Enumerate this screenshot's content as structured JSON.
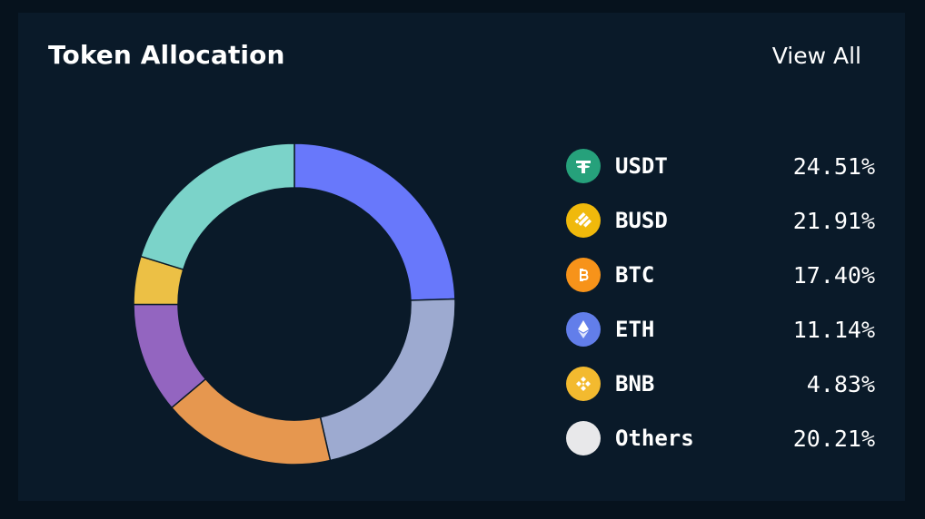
{
  "card": {
    "title": "Token Allocation",
    "view_all_label": "View All"
  },
  "chart_data": {
    "type": "pie",
    "subtype": "donut",
    "title": "",
    "categories": [
      "USDT",
      "BUSD",
      "BTC",
      "ETH",
      "BNB",
      "Others"
    ],
    "values": [
      24.51,
      21.91,
      17.4,
      11.14,
      4.83,
      20.21
    ],
    "value_labels": [
      "24.51%",
      "21.91%",
      "17.40%",
      "11.14%",
      "4.83%",
      "20.21%"
    ],
    "unit": "%",
    "colors": [
      "#6878fb",
      "#9daad0",
      "#e6974f",
      "#9365c0",
      "#ecc045",
      "#7bd3c9"
    ],
    "legend_position": "right"
  },
  "legend_icons": [
    {
      "name": "tether-icon",
      "bg": "#26a17b"
    },
    {
      "name": "busd-icon",
      "bg": "#f0b90b"
    },
    {
      "name": "bitcoin-icon",
      "bg": "#f7931a"
    },
    {
      "name": "ethereum-icon",
      "bg": "#627eea"
    },
    {
      "name": "bnb-icon",
      "bg": "#f3ba2f"
    },
    {
      "name": "others-icon",
      "bg": "#e8e8ea"
    }
  ]
}
